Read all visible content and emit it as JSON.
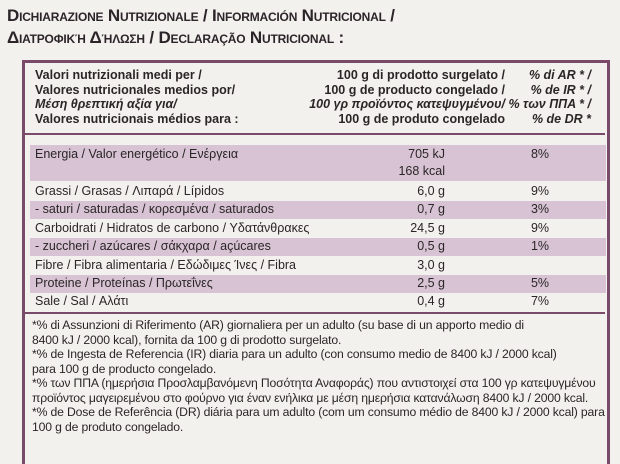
{
  "heading": {
    "line1": "Dichiarazione Nutrizionale / Información Nutricional /",
    "line2": "Διατροφική Δήλωση / Declaração Nutricional :"
  },
  "header": {
    "col1": [
      "Valori nutrizionali medi per /",
      "Valores nutricionales medios por/",
      "Μέση θρεπτική αξία για/",
      "Valores nutricionais médios para :"
    ],
    "col2": [
      "100 g di prodotto surgelato /",
      "100 g de producto congelado /",
      "100 γρ προϊόντος κατεψυγμένου/",
      "100 g de produto congelado"
    ],
    "col3": [
      "% di AR * /",
      "% de IR * /",
      "% των ΠΠΑ * /",
      "% de DR *"
    ]
  },
  "nutrients": [
    {
      "label": "Energia / Valor energético / Ενέργεια",
      "value": "705 kJ",
      "value2": "168 kcal",
      "pct": "8%"
    },
    {
      "label": "Grassi / Grasas / Λιπαρά / Lípidos",
      "value": "6,0 g",
      "pct": "9%"
    },
    {
      "label": "- saturi / saturadas / κορεσμένα / saturados",
      "value": "0,7 g",
      "pct": "3%"
    },
    {
      "label": "Carboidrati / Hidratos de carbono / Υδατάνθρακες",
      "value": "24,5 g",
      "pct": "9%"
    },
    {
      "label": "- zuccheri / azúcares / σάκχαρα / açúcares",
      "value": "0,5 g",
      "pct": "1%"
    },
    {
      "label": "Fibre / Fibra alimentaria / Εδώδιμες Ίνες / Fibra",
      "value": "3,0 g",
      "pct": ""
    },
    {
      "label": "Proteine / Proteínas / Πρωτεΐνες",
      "value": "2,5 g",
      "pct": "5%"
    },
    {
      "label": "Sale / Sal / Αλάτι",
      "value": "0,4 g",
      "pct": "7%"
    }
  ],
  "footnotes": [
    "*% di Assunzioni di Riferimento (AR) giornaliera per un adulto (su base di un apporto medio di",
    "8400 kJ / 2000 kcal), fornita da 100 g di prodotto surgelato.",
    "*% de Ingesta de Referencia (IR) diaria para un adulto (con consumo medio de 8400 kJ / 2000 kcal)",
    "para 100 g de producto congelado.",
    "*% των ΠΠΑ (ημερήσια Προσλαμβανόμενη Ποσότητα Αναφοράς) που αντιστοιχεί στα 100 γρ κατεψυγμένου",
    "προϊόντος μαγειρεμένου στο φούρνο για έναν ενήλικα με μέση ημερήσια κατανάλωση 8400 kJ / 2000 kcal.",
    "*% de Dose de Referência (DR) diária para um adulto (com um consumo médio de 8400 kJ / 2000 kcal) para",
    "100 g de produto congelado."
  ]
}
